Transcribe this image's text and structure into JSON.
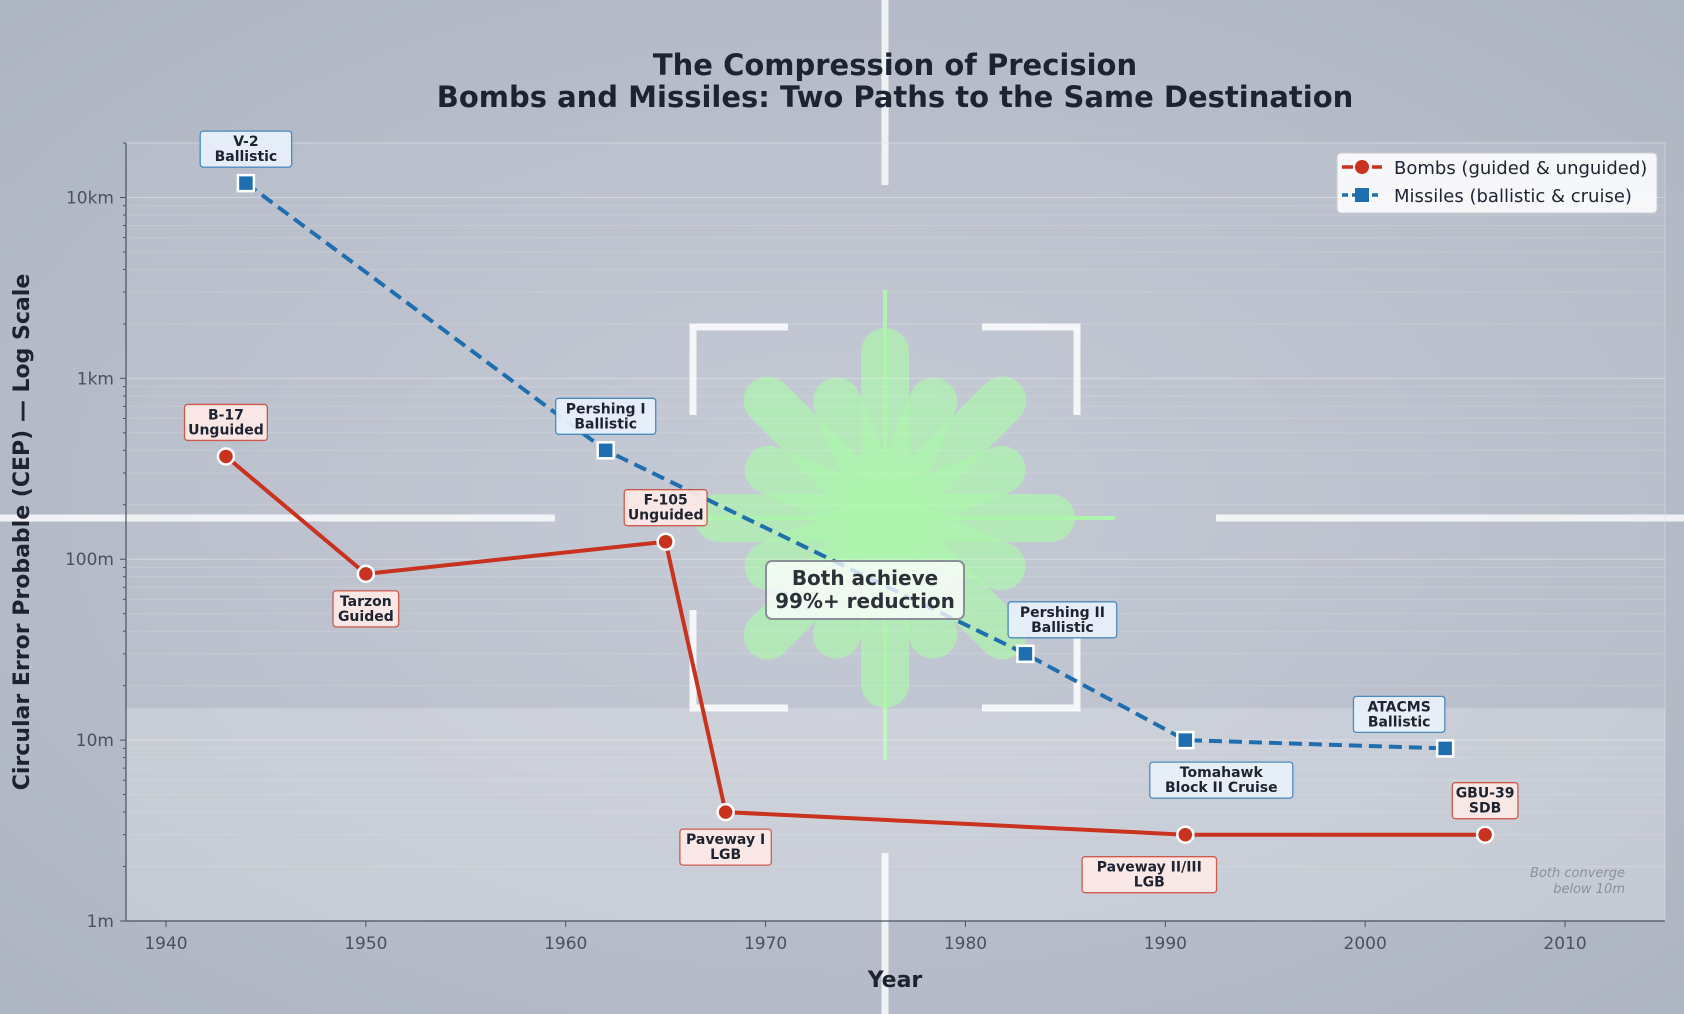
{
  "chart_data": {
    "type": "line",
    "title": "The Compression of Precision",
    "subtitle": "Bombs and Missiles: Two Paths to the Same Destination",
    "xlabel": "Year",
    "ylabel": "Circular Error Probable (CEP) — Log Scale",
    "xlim": [
      1938,
      2015
    ],
    "ylim": [
      1,
      20000
    ],
    "yscale": "log",
    "xticks": [
      1940,
      1950,
      1960,
      1970,
      1980,
      1990,
      2000,
      2010
    ],
    "yticks": [
      {
        "value": 1,
        "label": "1m"
      },
      {
        "value": 10,
        "label": "10m"
      },
      {
        "value": 100,
        "label": "100m"
      },
      {
        "value": 1000,
        "label": "1km"
      },
      {
        "value": 10000,
        "label": "10km"
      }
    ],
    "grid": true,
    "legend_position": "top-right",
    "series": [
      {
        "name": "Bombs (guided & unguided)",
        "color": "#c8321e",
        "marker": "circle",
        "linestyle": "solid",
        "points": [
          {
            "x": 1943,
            "y": 370,
            "label": [
              "B-17",
              "Unguided"
            ],
            "label_pos": "above"
          },
          {
            "x": 1950,
            "y": 83,
            "label": [
              "Tarzon",
              "Guided"
            ],
            "label_pos": "below"
          },
          {
            "x": 1965,
            "y": 125,
            "label": [
              "F-105",
              "Unguided"
            ],
            "label_pos": "above"
          },
          {
            "x": 1968,
            "y": 4,
            "label": [
              "Paveway I",
              "LGB"
            ],
            "label_pos": "below"
          },
          {
            "x": 1991,
            "y": 3,
            "label": [
              "Paveway II/III",
              "LGB"
            ],
            "label_pos": "below-low"
          },
          {
            "x": 2006,
            "y": 3,
            "label": [
              "GBU-39",
              "SDB"
            ],
            "label_pos": "above"
          }
        ]
      },
      {
        "name": "Missiles (ballistic & cruise)",
        "color": "#1f6fb0",
        "marker": "square",
        "linestyle": "dashed",
        "points": [
          {
            "x": 1944,
            "y": 12000,
            "label": [
              "V-2",
              "Ballistic"
            ],
            "label_pos": "above"
          },
          {
            "x": 1962,
            "y": 400,
            "label": [
              "Pershing I",
              "Ballistic"
            ],
            "label_pos": "above"
          },
          {
            "x": 1983,
            "y": 30,
            "label": [
              "Pershing II",
              "Ballistic"
            ],
            "label_pos": "above-right"
          },
          {
            "x": 1991,
            "y": 10,
            "label": [
              "Tomahawk",
              "Block II Cruise"
            ],
            "label_pos": "below-right"
          },
          {
            "x": 2004,
            "y": 9,
            "label": [
              "ATACMS",
              "Ballistic"
            ],
            "label_pos": "above-left"
          }
        ]
      }
    ],
    "annotations": {
      "center": [
        "Both achieve",
        "99%+ reduction"
      ],
      "corner_note": [
        "Both converge",
        "below 10m"
      ]
    }
  }
}
